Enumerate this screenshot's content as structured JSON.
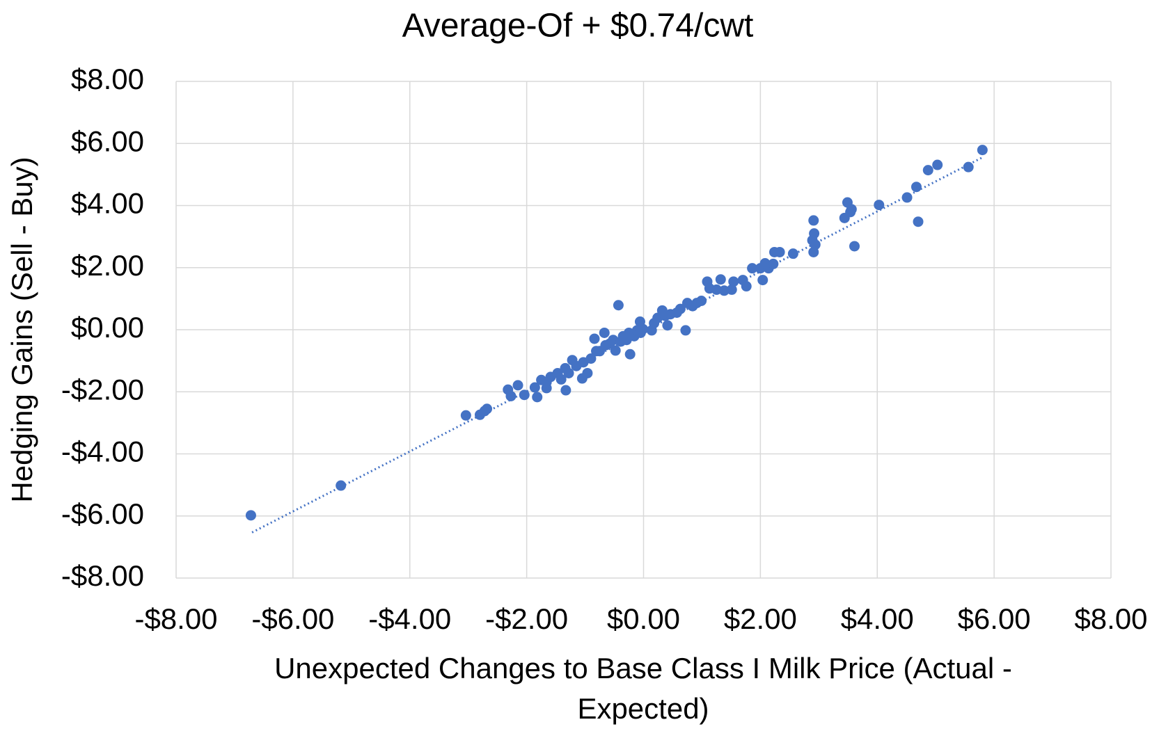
{
  "chart_data": {
    "type": "scatter",
    "title": "Average-Of + $0.74/cwt",
    "x_label": "Unexpected Changes to Base Class I Milk Price (Actual - Expected)",
    "y_label": "Hedging Gains (Sell - Buy)",
    "xlim": [
      -8,
      8
    ],
    "ylim": [
      -8,
      8
    ],
    "xticks": [
      {
        "value": -8,
        "label": "-$8.00"
      },
      {
        "value": -6,
        "label": "-$6.00"
      },
      {
        "value": -4,
        "label": "-$4.00"
      },
      {
        "value": -2,
        "label": "-$2.00"
      },
      {
        "value": 0,
        "label": "$0.00"
      },
      {
        "value": 2,
        "label": "$2.00"
      },
      {
        "value": 4,
        "label": "$4.00"
      },
      {
        "value": 6,
        "label": "$6.00"
      },
      {
        "value": 8,
        "label": "$8.00"
      }
    ],
    "yticks": [
      {
        "value": 8,
        "label": "$8.00"
      },
      {
        "value": 6,
        "label": "$6.00"
      },
      {
        "value": 4,
        "label": "$4.00"
      },
      {
        "value": 2,
        "label": "$2.00"
      },
      {
        "value": 0,
        "label": "$0.00"
      },
      {
        "value": -2,
        "label": "-$2.00"
      },
      {
        "value": -4,
        "label": "-$4.00"
      },
      {
        "value": -6,
        "label": "-$6.00"
      },
      {
        "value": -8,
        "label": "-$8.00"
      }
    ],
    "grid": true,
    "color": "#4472c4",
    "x": [
      -6.72,
      -5.18,
      -3.04,
      -2.8,
      -2.72,
      -2.68,
      -2.32,
      -2.27,
      -2.15,
      -2.04,
      -1.82,
      -1.86,
      -1.75,
      -1.66,
      -1.59,
      -1.66,
      -1.47,
      -1.41,
      -1.33,
      -1.34,
      -1.28,
      -1.22,
      -1.15,
      -1.05,
      -0.96,
      -1.03,
      -0.9,
      -0.81,
      -0.84,
      -0.75,
      -0.65,
      -0.67,
      -0.58,
      -0.52,
      -0.48,
      -0.43,
      -0.39,
      -0.35,
      -0.29,
      -0.23,
      -0.25,
      -0.16,
      -0.11,
      -0.06,
      -0.01,
      -0.05,
      0.14,
      0.18,
      0.24,
      0.32,
      0.37,
      0.41,
      0.46,
      0.57,
      0.63,
      0.72,
      0.75,
      0.84,
      0.91,
      0.99,
      1.09,
      1.13,
      1.25,
      1.32,
      1.38,
      1.51,
      1.54,
      1.7,
      1.76,
      1.86,
      2.0,
      2.04,
      2.08,
      2.14,
      2.22,
      2.24,
      2.33,
      2.56,
      2.89,
      2.91,
      2.92,
      2.94,
      2.91,
      3.44,
      3.49,
      3.54,
      3.56,
      3.61,
      4.03,
      4.51,
      4.67,
      4.7,
      4.87,
      5.03,
      5.56,
      5.8
    ],
    "y": [
      -5.98,
      -5.02,
      -2.76,
      -2.74,
      -2.62,
      -2.55,
      -1.93,
      -2.14,
      -1.79,
      -2.1,
      -2.17,
      -1.86,
      -1.62,
      -1.69,
      -1.52,
      -1.88,
      -1.4,
      -1.6,
      -1.95,
      -1.24,
      -1.4,
      -0.98,
      -1.17,
      -1.57,
      -1.4,
      -1.05,
      -0.93,
      -0.69,
      -0.29,
      -0.69,
      -0.5,
      -0.1,
      -0.45,
      -0.33,
      -0.67,
      0.79,
      -0.38,
      -0.21,
      -0.33,
      -0.79,
      -0.1,
      -0.21,
      -0.02,
      0.26,
      0.02,
      -0.1,
      -0.02,
      0.21,
      0.38,
      0.62,
      0.45,
      0.14,
      0.5,
      0.55,
      0.67,
      -0.02,
      0.86,
      0.76,
      0.86,
      0.93,
      1.55,
      1.33,
      1.29,
      1.62,
      1.26,
      1.29,
      1.55,
      1.6,
      1.4,
      1.98,
      1.98,
      1.6,
      2.14,
      1.98,
      2.12,
      2.5,
      2.5,
      2.45,
      2.88,
      3.52,
      3.1,
      2.74,
      2.5,
      3.6,
      4.1,
      3.79,
      3.88,
      2.69,
      4.02,
      4.26,
      4.6,
      3.48,
      5.14,
      5.31,
      5.24,
      5.79
    ],
    "trendline": {
      "x": [
        -6.7,
        5.8
      ],
      "y": [
        -6.53,
        5.55
      ]
    }
  }
}
